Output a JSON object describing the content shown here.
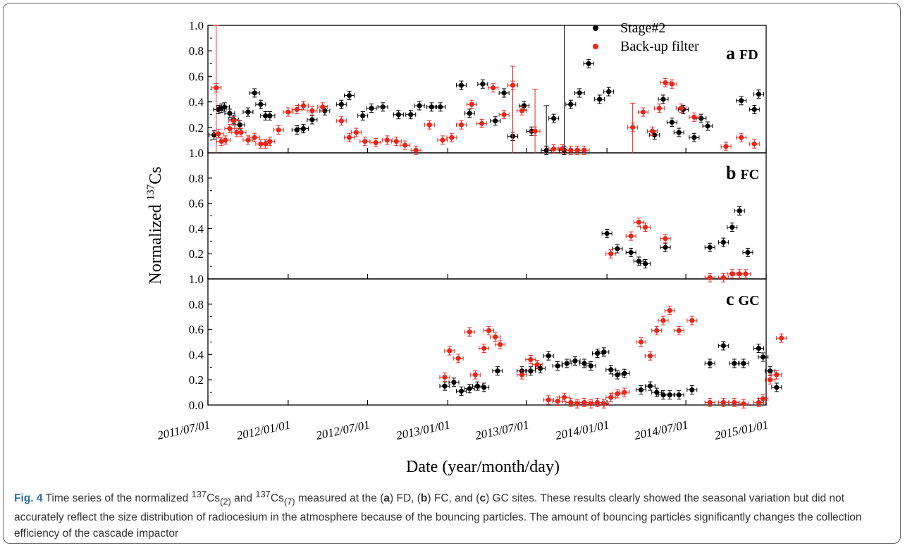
{
  "chart_data": {
    "type": "scatter",
    "subtype": "time-series with error bars, three stacked panels",
    "ylabel_prefix": "Normalized ",
    "ylabel_sup": "137",
    "ylabel_suffix": "Cs",
    "xlabel": "Date (year/month/day)",
    "x_ticks": [
      "2011/07/01",
      "2012/01/01",
      "2012/07/01",
      "2013/01/01",
      "2013/07/01",
      "2014/01/01",
      "2014/07/01",
      "2015/01/01"
    ],
    "xlim": [
      "2011/07/01",
      "2015/01/01"
    ],
    "y_ticks": [
      "0.2",
      "0.4",
      "0.6",
      "0.8",
      "1.0"
    ],
    "y_bottom_label_top_panels": "1.0",
    "y_bottom_label_last_panel": "0.0",
    "ylim": [
      0,
      1
    ],
    "legend": {
      "position": "top-right",
      "entries": [
        {
          "label": "Stage#2",
          "color": "#000000"
        },
        {
          "label": "Back-up filter",
          "color": "#e8261c"
        }
      ]
    },
    "colors": {
      "stage2": "#000000",
      "backup": "#e8261c"
    },
    "panels": [
      {
        "letter": "a",
        "site": "FD",
        "series": [
          {
            "name": "Stage#2",
            "points": [
              [
                "2011/07/15",
                0.14
              ],
              [
                "2011/07/25",
                0.34
              ],
              [
                "2011/08/01",
                0.35
              ],
              [
                "2011/08/08",
                0.36
              ],
              [
                "2011/08/20",
                0.31
              ],
              [
                "2011/08/29",
                0.26
              ],
              [
                "2011/09/12",
                0.22
              ],
              [
                "2011/10/01",
                0.32
              ],
              [
                "2011/10/16",
                0.47
              ],
              [
                "2011/10/30",
                0.38
              ],
              [
                "2011/11/10",
                0.29
              ],
              [
                "2011/11/20",
                0.29
              ],
              [
                "2012/01/21",
                0.18
              ],
              [
                "2012/02/05",
                0.19
              ],
              [
                "2012/02/25",
                0.26
              ],
              [
                "2012/03/25",
                0.33
              ],
              [
                "2012/05/02",
                0.38
              ],
              [
                "2012/05/20",
                0.45
              ],
              [
                "2012/06/20",
                0.29
              ],
              [
                "2012/07/10",
                0.35
              ],
              [
                "2012/08/05",
                0.36
              ],
              [
                "2012/09/10",
                0.3
              ],
              [
                "2012/10/08",
                0.3
              ],
              [
                "2012/10/28",
                0.37
              ],
              [
                "2012/11/25",
                0.36
              ],
              [
                "2012/12/15",
                0.36
              ],
              [
                "2013/02/01",
                0.53
              ],
              [
                "2013/02/20",
                0.31
              ],
              [
                "2013/03/22",
                0.54
              ],
              [
                "2013/04/20",
                0.25
              ],
              [
                "2013/05/10",
                0.47
              ],
              [
                "2013/05/30",
                0.13
              ],
              [
                "2013/06/25",
                0.37
              ],
              [
                "2013/07/12",
                0.17
              ],
              [
                "2013/08/15",
                0.02
              ],
              [
                "2013/09/01",
                0.27
              ],
              [
                "2013/09/25",
                0.02
              ],
              [
                "2013/10/10",
                0.38
              ],
              [
                "2013/10/30",
                0.47
              ],
              [
                "2013/11/20",
                0.7
              ],
              [
                "2013/12/15",
                0.42
              ],
              [
                "2014/01/05",
                0.48
              ],
              [
                "2014/04/20",
                0.14
              ],
              [
                "2014/05/10",
                0.42
              ],
              [
                "2014/05/30",
                0.24
              ],
              [
                "2014/06/15",
                0.16
              ],
              [
                "2014/06/25",
                0.34
              ],
              [
                "2014/07/20",
                0.12
              ],
              [
                "2014/08/05",
                0.27
              ],
              [
                "2014/08/20",
                0.21
              ],
              [
                "2014/11/05",
                0.41
              ],
              [
                "2014/12/05",
                0.34
              ],
              [
                "2014/12/15",
                0.46
              ]
            ]
          },
          {
            "name": "Back-up filter",
            "points": [
              [
                "2011/07/20",
                0.51
              ],
              [
                "2011/07/25",
                0.15
              ],
              [
                "2011/08/01",
                0.09
              ],
              [
                "2011/08/10",
                0.1
              ],
              [
                "2011/08/20",
                0.19
              ],
              [
                "2011/08/29",
                0.25
              ],
              [
                "2011/09/05",
                0.16
              ],
              [
                "2011/09/15",
                0.16
              ],
              [
                "2011/10/01",
                0.1
              ],
              [
                "2011/10/16",
                0.12
              ],
              [
                "2011/10/30",
                0.07
              ],
              [
                "2011/11/10",
                0.07
              ],
              [
                "2011/11/20",
                0.09
              ],
              [
                "2011/12/10",
                0.18
              ],
              [
                "2012/01/01",
                0.32
              ],
              [
                "2012/01/21",
                0.34
              ],
              [
                "2012/02/05",
                0.37
              ],
              [
                "2012/02/25",
                0.33
              ],
              [
                "2012/03/20",
                0.36
              ],
              [
                "2012/05/02",
                0.25
              ],
              [
                "2012/05/20",
                0.12
              ],
              [
                "2012/06/05",
                0.16
              ],
              [
                "2012/06/25",
                0.09
              ],
              [
                "2012/07/20",
                0.08
              ],
              [
                "2012/08/15",
                0.1
              ],
              [
                "2012/09/05",
                0.09
              ],
              [
                "2012/09/25",
                0.06
              ],
              [
                "2012/10/20",
                0.02
              ],
              [
                "2012/11/20",
                0.22
              ],
              [
                "2012/12/20",
                0.1
              ],
              [
                "2013/01/10",
                0.12
              ],
              [
                "2013/02/01",
                0.22
              ],
              [
                "2013/02/25",
                0.38
              ],
              [
                "2013/03/20",
                0.23
              ],
              [
                "2013/04/15",
                0.51
              ],
              [
                "2013/05/10",
                0.3
              ],
              [
                "2013/05/30",
                0.53
              ],
              [
                "2013/06/20",
                0.33
              ],
              [
                "2013/07/20",
                0.17
              ],
              [
                "2013/09/01",
                0.03
              ],
              [
                "2013/09/20",
                0.03
              ],
              [
                "2013/10/10",
                0.02
              ],
              [
                "2013/10/25",
                0.02
              ],
              [
                "2013/11/10",
                0.02
              ],
              [
                "2014/03/01",
                0.2
              ],
              [
                "2014/03/25",
                0.32
              ],
              [
                "2014/04/15",
                0.17
              ],
              [
                "2014/05/01",
                0.35
              ],
              [
                "2014/05/15",
                0.55
              ],
              [
                "2014/05/30",
                0.54
              ],
              [
                "2014/06/20",
                0.35
              ],
              [
                "2014/07/20",
                0.28
              ],
              [
                "2014/10/01",
                0.05
              ],
              [
                "2014/11/05",
                0.12
              ],
              [
                "2014/12/05",
                0.07
              ]
            ]
          }
        ]
      },
      {
        "letter": "b",
        "site": "FC",
        "series": [
          {
            "name": "Stage#2",
            "points": [
              [
                "2014/01/01",
                0.36
              ],
              [
                "2014/01/25",
                0.24
              ],
              [
                "2014/02/25",
                0.21
              ],
              [
                "2014/03/15",
                0.14
              ],
              [
                "2014/03/30",
                0.12
              ],
              [
                "2014/05/15",
                0.25
              ],
              [
                "2014/08/25",
                0.25
              ],
              [
                "2014/09/25",
                0.29
              ],
              [
                "2014/10/15",
                0.41
              ],
              [
                "2014/11/01",
                0.54
              ],
              [
                "2014/11/20",
                0.21
              ]
            ]
          },
          {
            "name": "Back-up filter",
            "points": [
              [
                "2014/01/10",
                0.2
              ],
              [
                "2014/02/25",
                0.34
              ],
              [
                "2014/03/15",
                0.45
              ],
              [
                "2014/03/30",
                0.41
              ],
              [
                "2014/05/15",
                0.32
              ],
              [
                "2014/08/25",
                0.01
              ],
              [
                "2014/09/25",
                0.01
              ],
              [
                "2014/10/15",
                0.04
              ],
              [
                "2014/11/01",
                0.04
              ],
              [
                "2014/11/15",
                0.04
              ]
            ]
          }
        ]
      },
      {
        "letter": "c",
        "site": "GC",
        "series": [
          {
            "name": "Stage#2",
            "points": [
              [
                "2012/12/25",
                0.15
              ],
              [
                "2013/01/15",
                0.18
              ],
              [
                "2013/02/01",
                0.11
              ],
              [
                "2013/02/20",
                0.13
              ],
              [
                "2013/03/10",
                0.15
              ],
              [
                "2013/03/25",
                0.14
              ],
              [
                "2013/04/25",
                0.27
              ],
              [
                "2013/06/20",
                0.27
              ],
              [
                "2013/07/10",
                0.27
              ],
              [
                "2013/08/01",
                0.29
              ],
              [
                "2013/08/20",
                0.39
              ],
              [
                "2013/09/10",
                0.31
              ],
              [
                "2013/10/01",
                0.33
              ],
              [
                "2013/10/20",
                0.35
              ],
              [
                "2013/11/10",
                0.33
              ],
              [
                "2013/11/25",
                0.31
              ],
              [
                "2013/12/10",
                0.41
              ],
              [
                "2013/12/25",
                0.42
              ],
              [
                "2014/01/10",
                0.28
              ],
              [
                "2014/01/25",
                0.24
              ],
              [
                "2014/02/10",
                0.25
              ],
              [
                "2014/03/20",
                0.12
              ],
              [
                "2014/04/10",
                0.15
              ],
              [
                "2014/04/25",
                0.1
              ],
              [
                "2014/05/10",
                0.08
              ],
              [
                "2014/05/25",
                0.08
              ],
              [
                "2014/06/15",
                0.08
              ],
              [
                "2014/07/15",
                0.12
              ],
              [
                "2014/08/25",
                0.33
              ],
              [
                "2014/09/25",
                0.47
              ],
              [
                "2014/10/20",
                0.33
              ],
              [
                "2014/11/10",
                0.33
              ],
              [
                "2014/12/15",
                0.45
              ],
              [
                "2014/12/25",
                0.38
              ],
              [
                "2015/01/10",
                0.27
              ],
              [
                "2015/01/25",
                0.14
              ]
            ]
          },
          {
            "name": "Back-up filter",
            "points": [
              [
                "2012/12/25",
                0.22
              ],
              [
                "2013/01/05",
                0.43
              ],
              [
                "2013/01/25",
                0.37
              ],
              [
                "2013/02/20",
                0.58
              ],
              [
                "2013/03/05",
                0.24
              ],
              [
                "2013/03/25",
                0.45
              ],
              [
                "2013/04/05",
                0.59
              ],
              [
                "2013/04/20",
                0.54
              ],
              [
                "2013/05/01",
                0.48
              ],
              [
                "2013/06/20",
                0.24
              ],
              [
                "2013/07/10",
                0.36
              ],
              [
                "2013/07/25",
                0.32
              ],
              [
                "2013/08/20",
                0.04
              ],
              [
                "2013/09/10",
                0.03
              ],
              [
                "2013/09/25",
                0.06
              ],
              [
                "2013/10/10",
                0.02
              ],
              [
                "2013/10/25",
                0.01
              ],
              [
                "2013/11/10",
                0.02
              ],
              [
                "2013/11/25",
                0.01
              ],
              [
                "2013/12/10",
                0.02
              ],
              [
                "2013/12/25",
                0.01
              ],
              [
                "2014/01/10",
                0.06
              ],
              [
                "2014/01/25",
                0.09
              ],
              [
                "2014/02/10",
                0.1
              ],
              [
                "2014/03/20",
                0.5
              ],
              [
                "2014/04/10",
                0.39
              ],
              [
                "2014/04/25",
                0.59
              ],
              [
                "2014/05/10",
                0.67
              ],
              [
                "2014/05/25",
                0.75
              ],
              [
                "2014/06/15",
                0.59
              ],
              [
                "2014/07/15",
                0.67
              ],
              [
                "2014/08/25",
                0.02
              ],
              [
                "2014/09/25",
                0.02
              ],
              [
                "2014/10/20",
                0.02
              ],
              [
                "2014/11/10",
                0.01
              ],
              [
                "2014/12/15",
                0.02
              ],
              [
                "2014/12/25",
                0.05
              ],
              [
                "2015/01/10",
                0.2
              ],
              [
                "2015/01/25",
                0.24
              ],
              [
                "2015/02/05",
                0.53
              ]
            ]
          }
        ]
      }
    ]
  },
  "caption": {
    "fig_label": "Fig. 4",
    "text_1": " Time series of the normalized ",
    "sup_1": "137",
    "cs_1": "Cs",
    "sub_1": "(2)",
    "text_2": " and ",
    "sup_2": "137",
    "cs_2": "Cs",
    "sub_2": "(7)",
    "text_3": " measured at the (",
    "a": "a",
    "text_4": ") FD, (",
    "b": "b",
    "text_5": ") FC, and (",
    "c": "c",
    "text_6": ") GC sites. These results clearly showed the seasonal variation but did not accurately reflect the size distribution of radiocesium in the atmosphere because of the bouncing particles. The amount of bouncing particles significantly changes the collection efficiency of the cascade impactor"
  }
}
